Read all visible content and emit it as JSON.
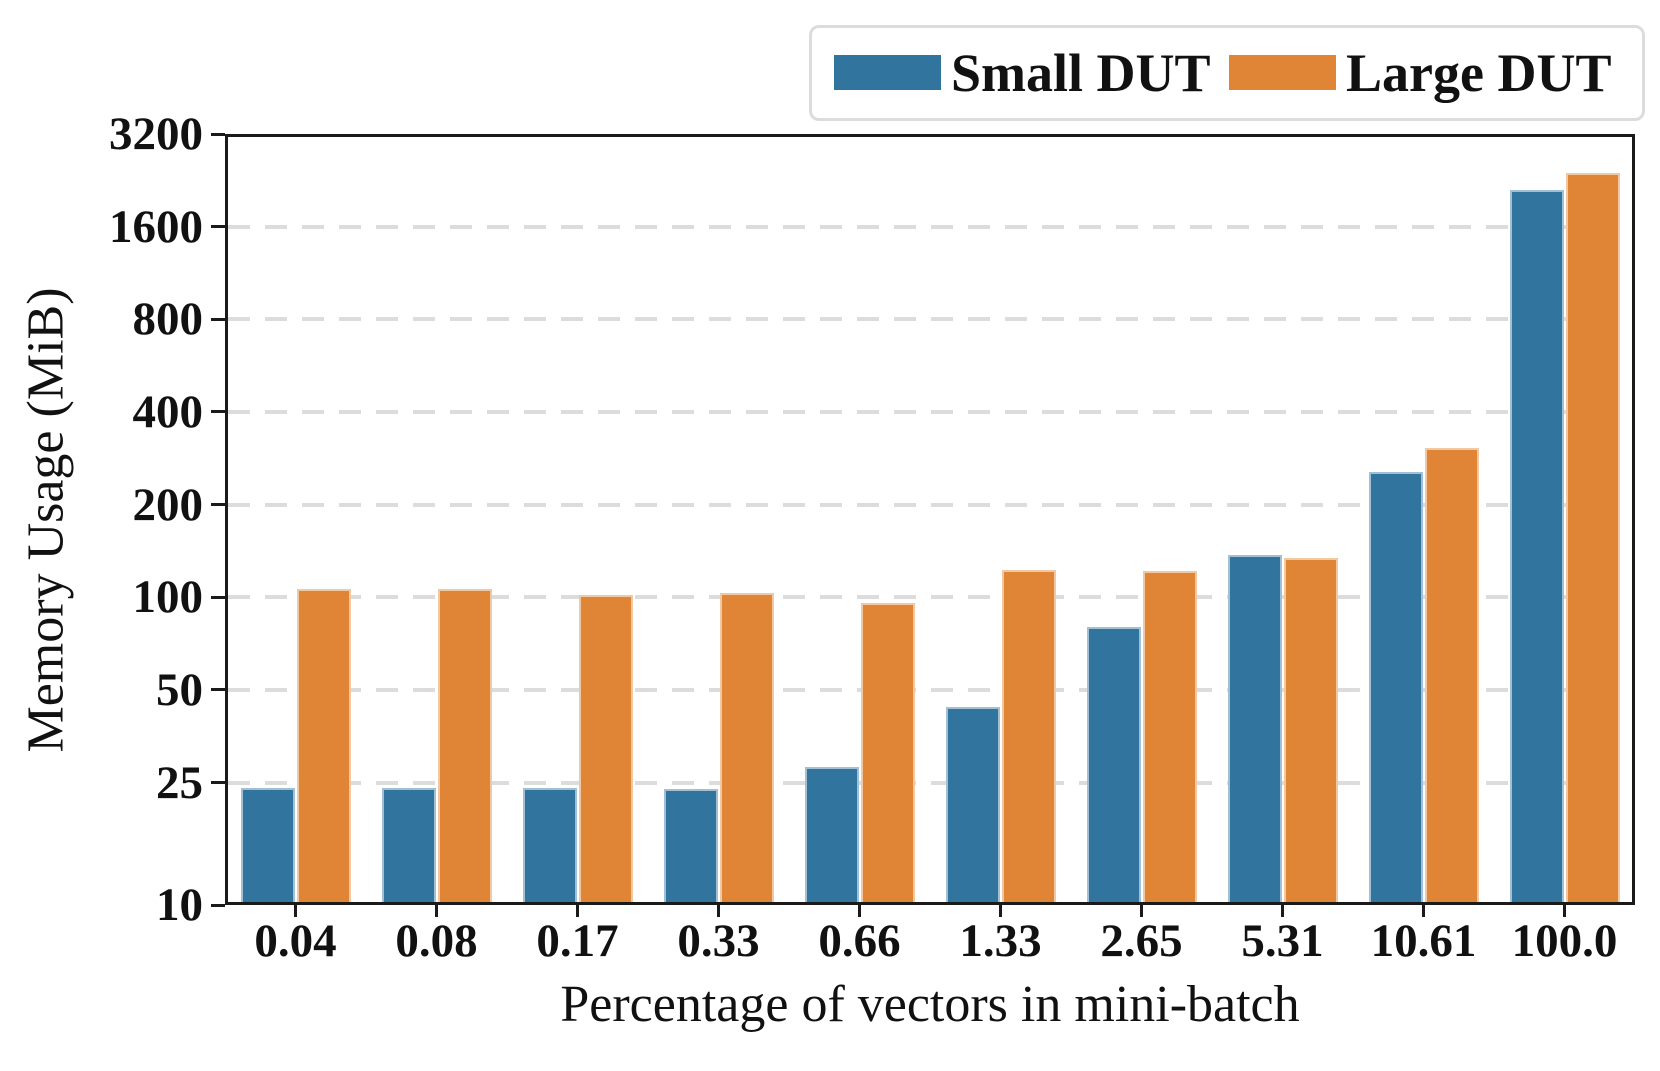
{
  "figure": {
    "background": "#ffffff"
  },
  "colors": {
    "small_dut": "#31749E",
    "large_dut": "#E08536",
    "grid": "#DCDCDC",
    "text": "#111111",
    "spine": "#1A1A1A",
    "legend_border": "#DCDCDC"
  },
  "legend": {
    "entries": [
      {
        "label": "Small DUT",
        "color": "#31749E"
      },
      {
        "label": "Large DUT",
        "color": "#E08536"
      }
    ]
  },
  "chart_data": {
    "type": "bar",
    "title": "",
    "xlabel": "Percentage of vectors in mini-batch",
    "ylabel": "Memory Usage (MiB)",
    "categories": [
      "0.04",
      "0.08",
      "0.17",
      "0.33",
      "0.66",
      "1.33",
      "2.65",
      "5.31",
      "10.61",
      "100.0"
    ],
    "series": [
      {
        "name": "Small DUT",
        "color": "#31749E",
        "values": [
          24,
          24,
          24,
          23.8,
          28,
          44,
          80,
          137,
          255,
          2110
        ]
      },
      {
        "name": "Large DUT",
        "color": "#E08536",
        "values": [
          106,
          106,
          102,
          103.5,
          95.5,
          123,
          122,
          134,
          305,
          2390
        ]
      }
    ],
    "yscale": "log",
    "ylim": [
      10,
      3200
    ],
    "yticks": [
      10,
      25,
      50,
      100,
      200,
      400,
      800,
      1600,
      3200
    ],
    "grid": "horizontal dashed",
    "legend_position": "above top-right"
  }
}
